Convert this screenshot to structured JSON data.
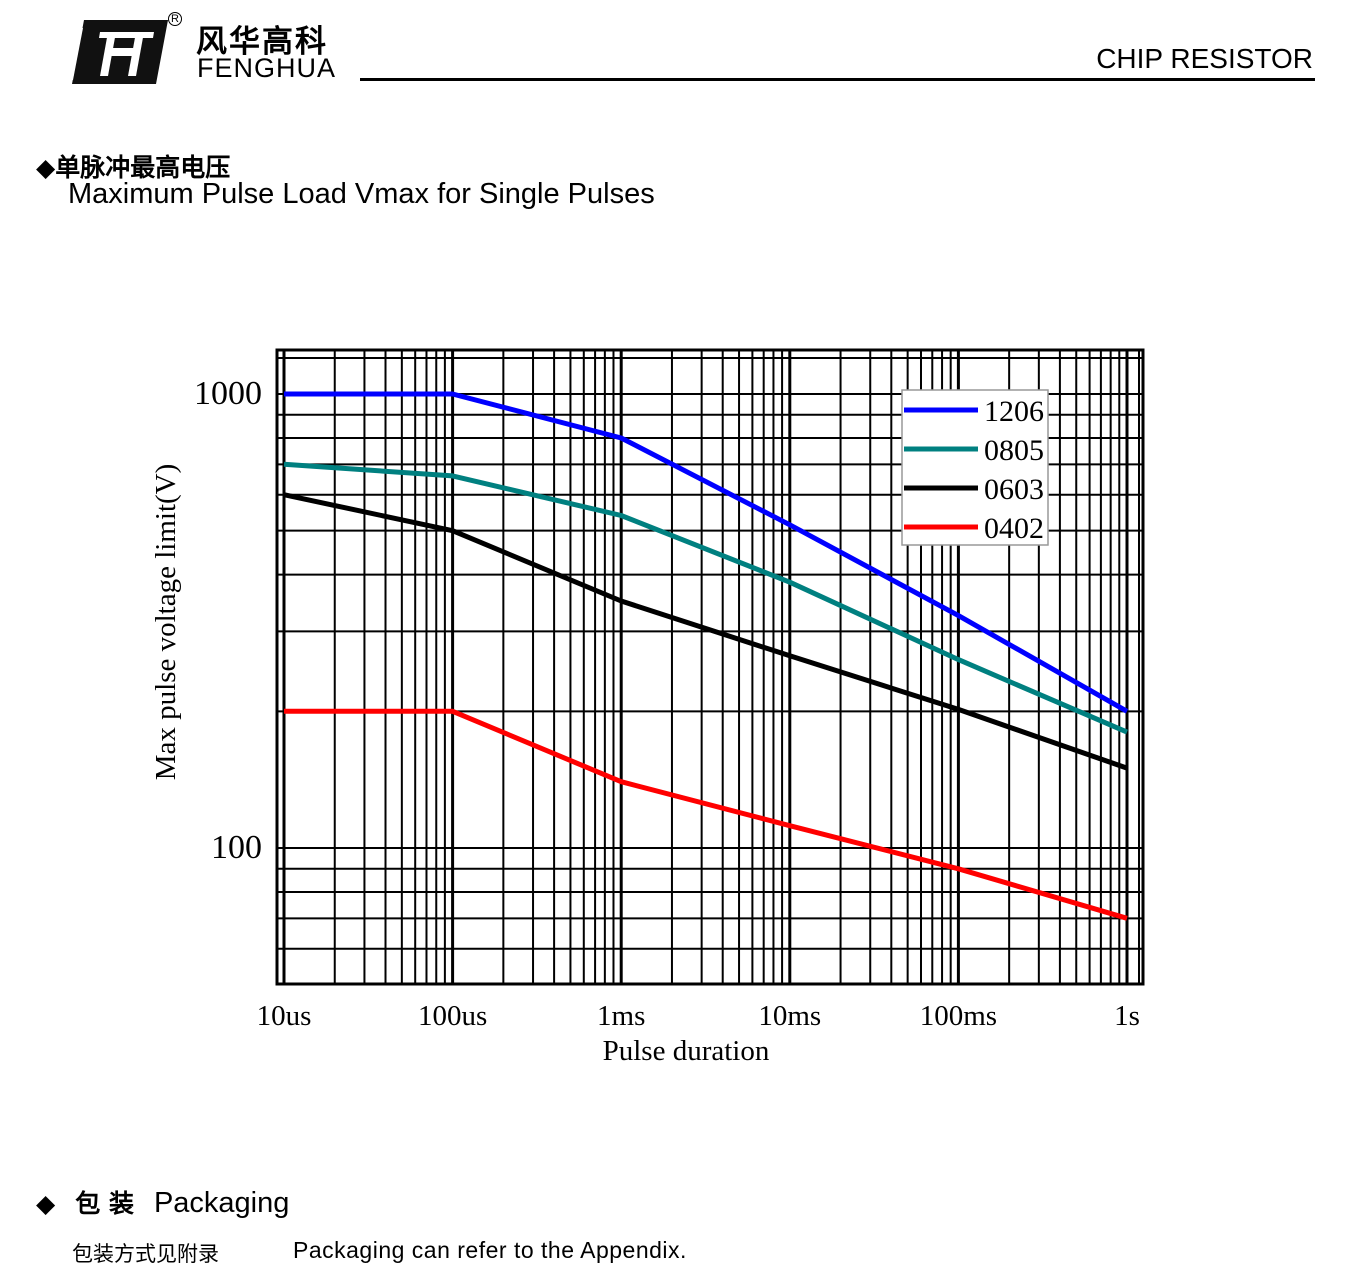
{
  "header": {
    "logo_cn": "风华高科",
    "logo_en": "FENGHUA",
    "registered_mark": "R",
    "title": "CHIP RESISTOR"
  },
  "section1": {
    "bullet": "◆",
    "title_cn": "单脉冲最高电压",
    "title_en": "Maximum Pulse Load Vmax for Single Pulses"
  },
  "chart_data": {
    "type": "line",
    "title": "",
    "xlabel": "Pulse duration",
    "ylabel": "Max pulse voltage limit(V)",
    "x_scale": "log",
    "y_scale": "log",
    "x_unit": "s",
    "xlim": [
      1e-05,
      1
    ],
    "ylim": [
      50,
      1250
    ],
    "grid": true,
    "legend_position": "top-right",
    "x_ticks": [
      {
        "value": 1e-05,
        "label": "10us"
      },
      {
        "value": 0.0001,
        "label": "100us"
      },
      {
        "value": 0.001,
        "label": "1ms"
      },
      {
        "value": 0.01,
        "label": "10ms"
      },
      {
        "value": 0.1,
        "label": "100ms"
      },
      {
        "value": 1,
        "label": "1s"
      }
    ],
    "y_ticks": [
      {
        "value": 1000,
        "label": "1000"
      },
      {
        "value": 100,
        "label": "100"
      }
    ],
    "x": [
      1e-05,
      0.0001,
      0.001,
      0.01,
      0.1,
      1
    ],
    "series": [
      {
        "name": "1206",
        "color": "#0000ff",
        "values": [
          1000,
          1000,
          800,
          515,
          325,
          200
        ]
      },
      {
        "name": "0805",
        "color": "#008080",
        "values": [
          700,
          660,
          540,
          385,
          260,
          180
        ]
      },
      {
        "name": "0603",
        "color": "#000000",
        "values": [
          600,
          500,
          350,
          265,
          202,
          150
        ]
      },
      {
        "name": "0402",
        "color": "#ff0000",
        "values": [
          200,
          200,
          140,
          112,
          90,
          70
        ]
      }
    ]
  },
  "section2": {
    "bullet": "◆",
    "title_cn": "包 装",
    "title_en": "Packaging",
    "text_cn": "包装方式见附录",
    "text_en": "Packaging can refer to the Appendix."
  }
}
